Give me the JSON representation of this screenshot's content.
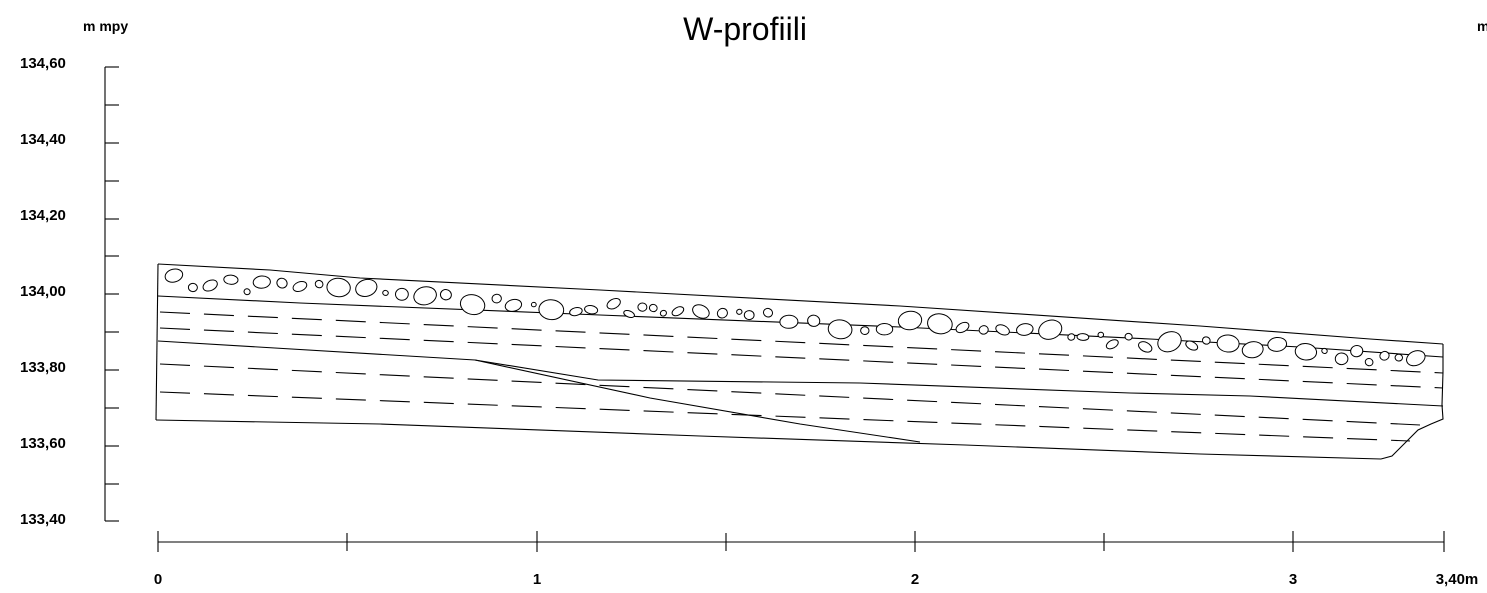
{
  "title": "W-profiili",
  "y_unit_left": "m mpy",
  "y_unit_right": "m",
  "elevation_axis": {
    "labels": [
      "134,60",
      "134,40",
      "134,20",
      "134,00",
      "133,80",
      "133,60",
      "133,40"
    ],
    "min": 133.4,
    "max": 134.6
  },
  "distance_axis": {
    "labels": [
      "0",
      "1",
      "2",
      "3",
      "3,40m"
    ],
    "min": 0,
    "max": 3.4
  }
}
